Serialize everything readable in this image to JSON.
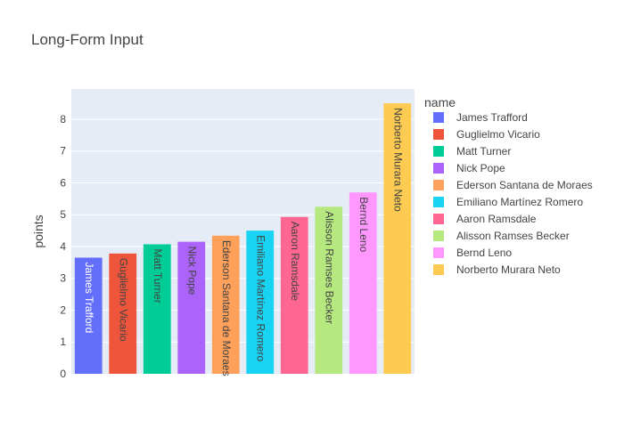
{
  "chart_data": {
    "type": "bar",
    "title": "Long-Form Input",
    "xlabel": "",
    "ylabel": "points",
    "ylim": [
      0,
      8.95
    ],
    "y_ticks": [
      0,
      1,
      2,
      3,
      4,
      5,
      6,
      7,
      8
    ],
    "grid": true,
    "legend_title": "name",
    "legend_position": "right",
    "categories": [
      "James Trafford",
      "Guglielmo Vicario",
      "Matt Turner",
      "Nick Pope",
      "Ederson Santana de Moraes",
      "Emiliano Martínez Romero",
      "Aaron Ramsdale",
      "Alisson Ramses Becker",
      "Bernd Leno",
      "Norberto Murara Neto"
    ],
    "values": [
      3.65,
      3.78,
      4.07,
      4.15,
      4.34,
      4.5,
      4.93,
      5.25,
      5.7,
      8.5
    ],
    "colors": [
      "#636efa",
      "#EF553B",
      "#00cc96",
      "#ab63fa",
      "#FFA15A",
      "#19d3f3",
      "#FF6692",
      "#B6E880",
      "#FF97FF",
      "#FECB52"
    ],
    "label_colors": [
      "#ffffff",
      "#444444",
      "#444444",
      "#444444",
      "#444444",
      "#444444",
      "#444444",
      "#444444",
      "#444444",
      "#444444"
    ]
  }
}
